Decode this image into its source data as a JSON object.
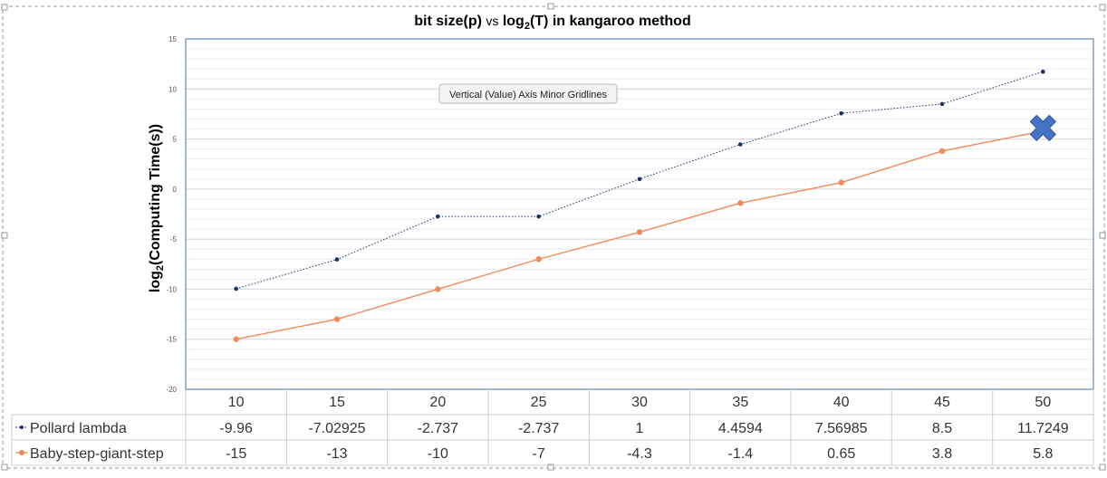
{
  "chart_data": {
    "type": "line",
    "title": "bit size(p) vs log2(T) in kangaroo method",
    "title_parts": {
      "before": "bit size(p) ",
      "vs": "vs",
      "middle": " log",
      "subscript": "2",
      "after": "(T) in kangaroo method"
    },
    "ylabel": "log2(Computing Time(s))",
    "ylabel_parts": {
      "before": "log",
      "subscript": "2",
      "after": "(Computing Time(s))"
    },
    "xlabel": "",
    "ylim": [
      -20,
      15
    ],
    "yticks": [
      15,
      10,
      5,
      0,
      -5,
      -10,
      -15,
      -20
    ],
    "ytick_labels": [
      "15",
      "10",
      "5",
      "0",
      "-5",
      "-10",
      "-15",
      "-20"
    ],
    "grid": true,
    "minor_grid": true,
    "categories": [
      "10",
      "15",
      "20",
      "25",
      "30",
      "35",
      "40",
      "45",
      "50"
    ],
    "data_table": true,
    "series": [
      {
        "name": "Pollard lambda",
        "color": "#1f2f6b",
        "line_style": "dotted",
        "values": [
          -9.96,
          -7.02925,
          -2.737,
          -2.737,
          1,
          4.4594,
          7.56985,
          8.5,
          11.7249
        ],
        "value_labels": [
          "-9.96",
          "-7.02925",
          "-2.737",
          "-2.737",
          "1",
          "4.4594",
          "7.56985",
          "8.5",
          "11.7249"
        ]
      },
      {
        "name": "Baby-step-giant-step",
        "color": "#f08a5a",
        "line_style": "solid",
        "values": [
          -15,
          -13,
          -10,
          -7,
          -4.3,
          -1.4,
          0.65,
          3.8,
          5.8
        ],
        "value_labels": [
          "-15",
          "-13",
          "-10",
          "-7",
          "-4.3",
          "-1.4",
          "0.65",
          "3.8",
          "5.8"
        ]
      }
    ],
    "marker_annotation": {
      "shape": "x-mark",
      "category": "50",
      "value": 6.1,
      "color": "#4472c4"
    },
    "tooltip": "Vertical (Value) Axis Minor Gridlines"
  }
}
